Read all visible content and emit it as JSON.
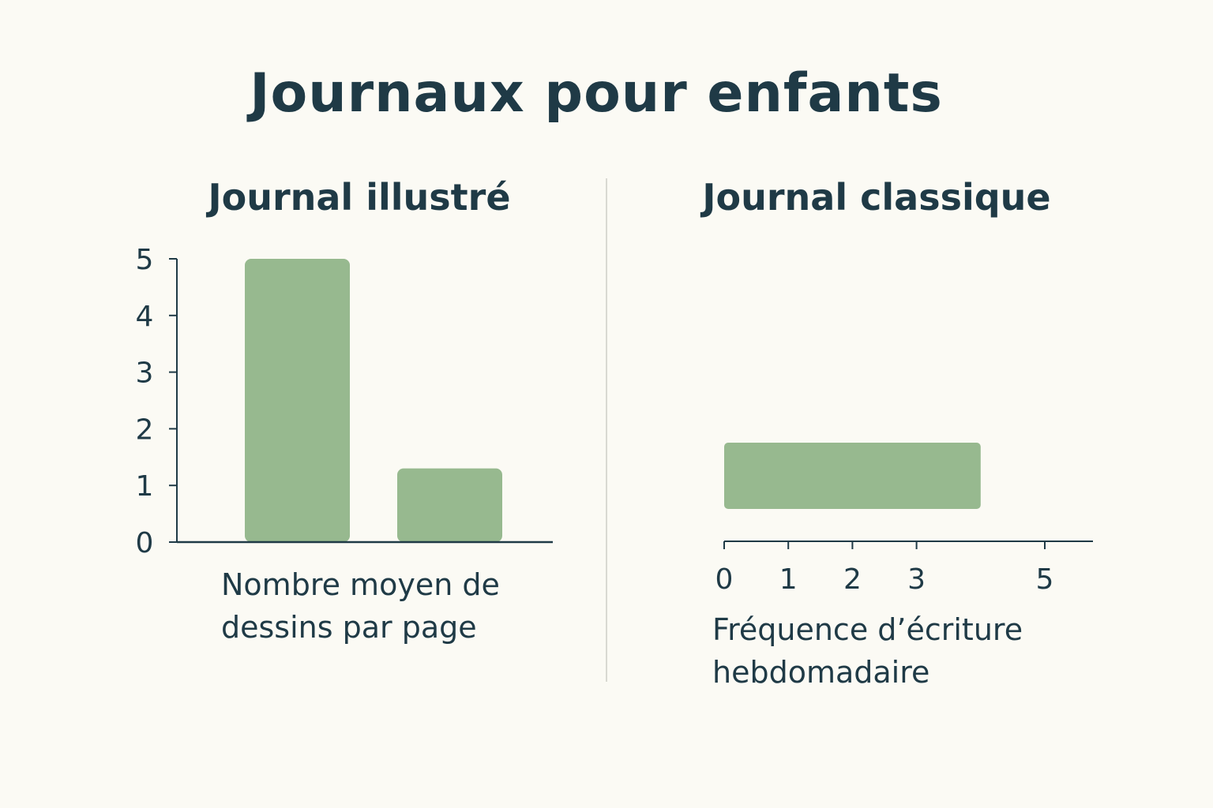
{
  "title": "Journaux pour enfants",
  "colors": {
    "background": "#fbfaf4",
    "bar": "#97b98f",
    "text": "#1f3a46",
    "divider": "#d9d9d2"
  },
  "chart_data": [
    {
      "type": "bar",
      "orientation": "vertical",
      "title": "Journal illustré",
      "xlabel_lines": [
        "Nombre moyen de",
        "dessins par page"
      ],
      "ylabel": "",
      "ylim": [
        0,
        5
      ],
      "yticks": [
        0,
        1,
        2,
        3,
        4,
        5
      ],
      "categories": [
        "",
        ""
      ],
      "values": [
        5,
        1.3
      ],
      "grid": false
    },
    {
      "type": "bar",
      "orientation": "horizontal",
      "title": "Journal classique",
      "xlabel_lines": [
        "Fréquence d’écriture",
        "hebdomadaire"
      ],
      "xlim": [
        0,
        5
      ],
      "xticks": [
        0,
        1,
        2,
        3,
        5
      ],
      "categories": [
        ""
      ],
      "values": [
        [
          0,
          4
        ]
      ],
      "grid": false
    }
  ]
}
